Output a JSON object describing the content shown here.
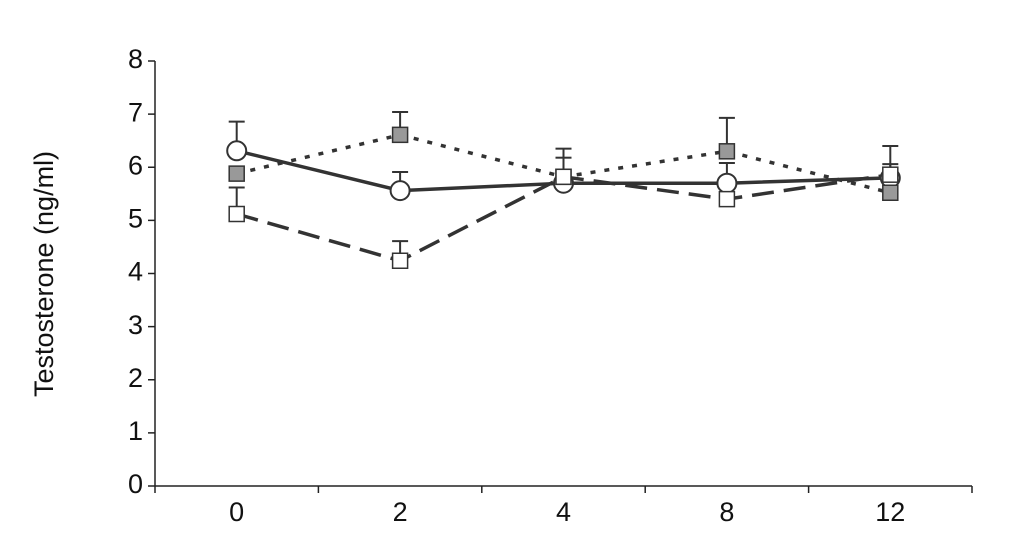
{
  "chart_data": {
    "type": "line",
    "y_label": "Testosterone (ng/ml)",
    "categories": [
      "0",
      "2",
      "4",
      "8",
      "12"
    ],
    "ylim": [
      0,
      8
    ],
    "yticks": [
      0,
      1,
      2,
      3,
      4,
      5,
      6,
      7,
      8
    ],
    "series": [
      {
        "color": "#333333",
        "marker": "circle",
        "marker_fill": "#ffffff",
        "line_style": "solid",
        "values": [
          6.31,
          5.56,
          5.7,
          5.7,
          5.8
        ],
        "errors": [
          0.55,
          0.35,
          0.48,
          0.38,
          0.6
        ]
      },
      {
        "color": "#333333",
        "marker": "square",
        "marker_fill": "#999999",
        "line_style": "dotted",
        "values": [
          5.88,
          6.61,
          5.82,
          6.3,
          5.52
        ],
        "errors": [
          null,
          0.43,
          null,
          0.63,
          null
        ]
      },
      {
        "color": "#333333",
        "marker": "square",
        "marker_fill": "#ffffff",
        "line_style": "dashed",
        "values": [
          5.12,
          4.24,
          5.82,
          5.4,
          5.86
        ],
        "errors": [
          0.5,
          0.37,
          0.53,
          null,
          0.2
        ]
      }
    ]
  }
}
